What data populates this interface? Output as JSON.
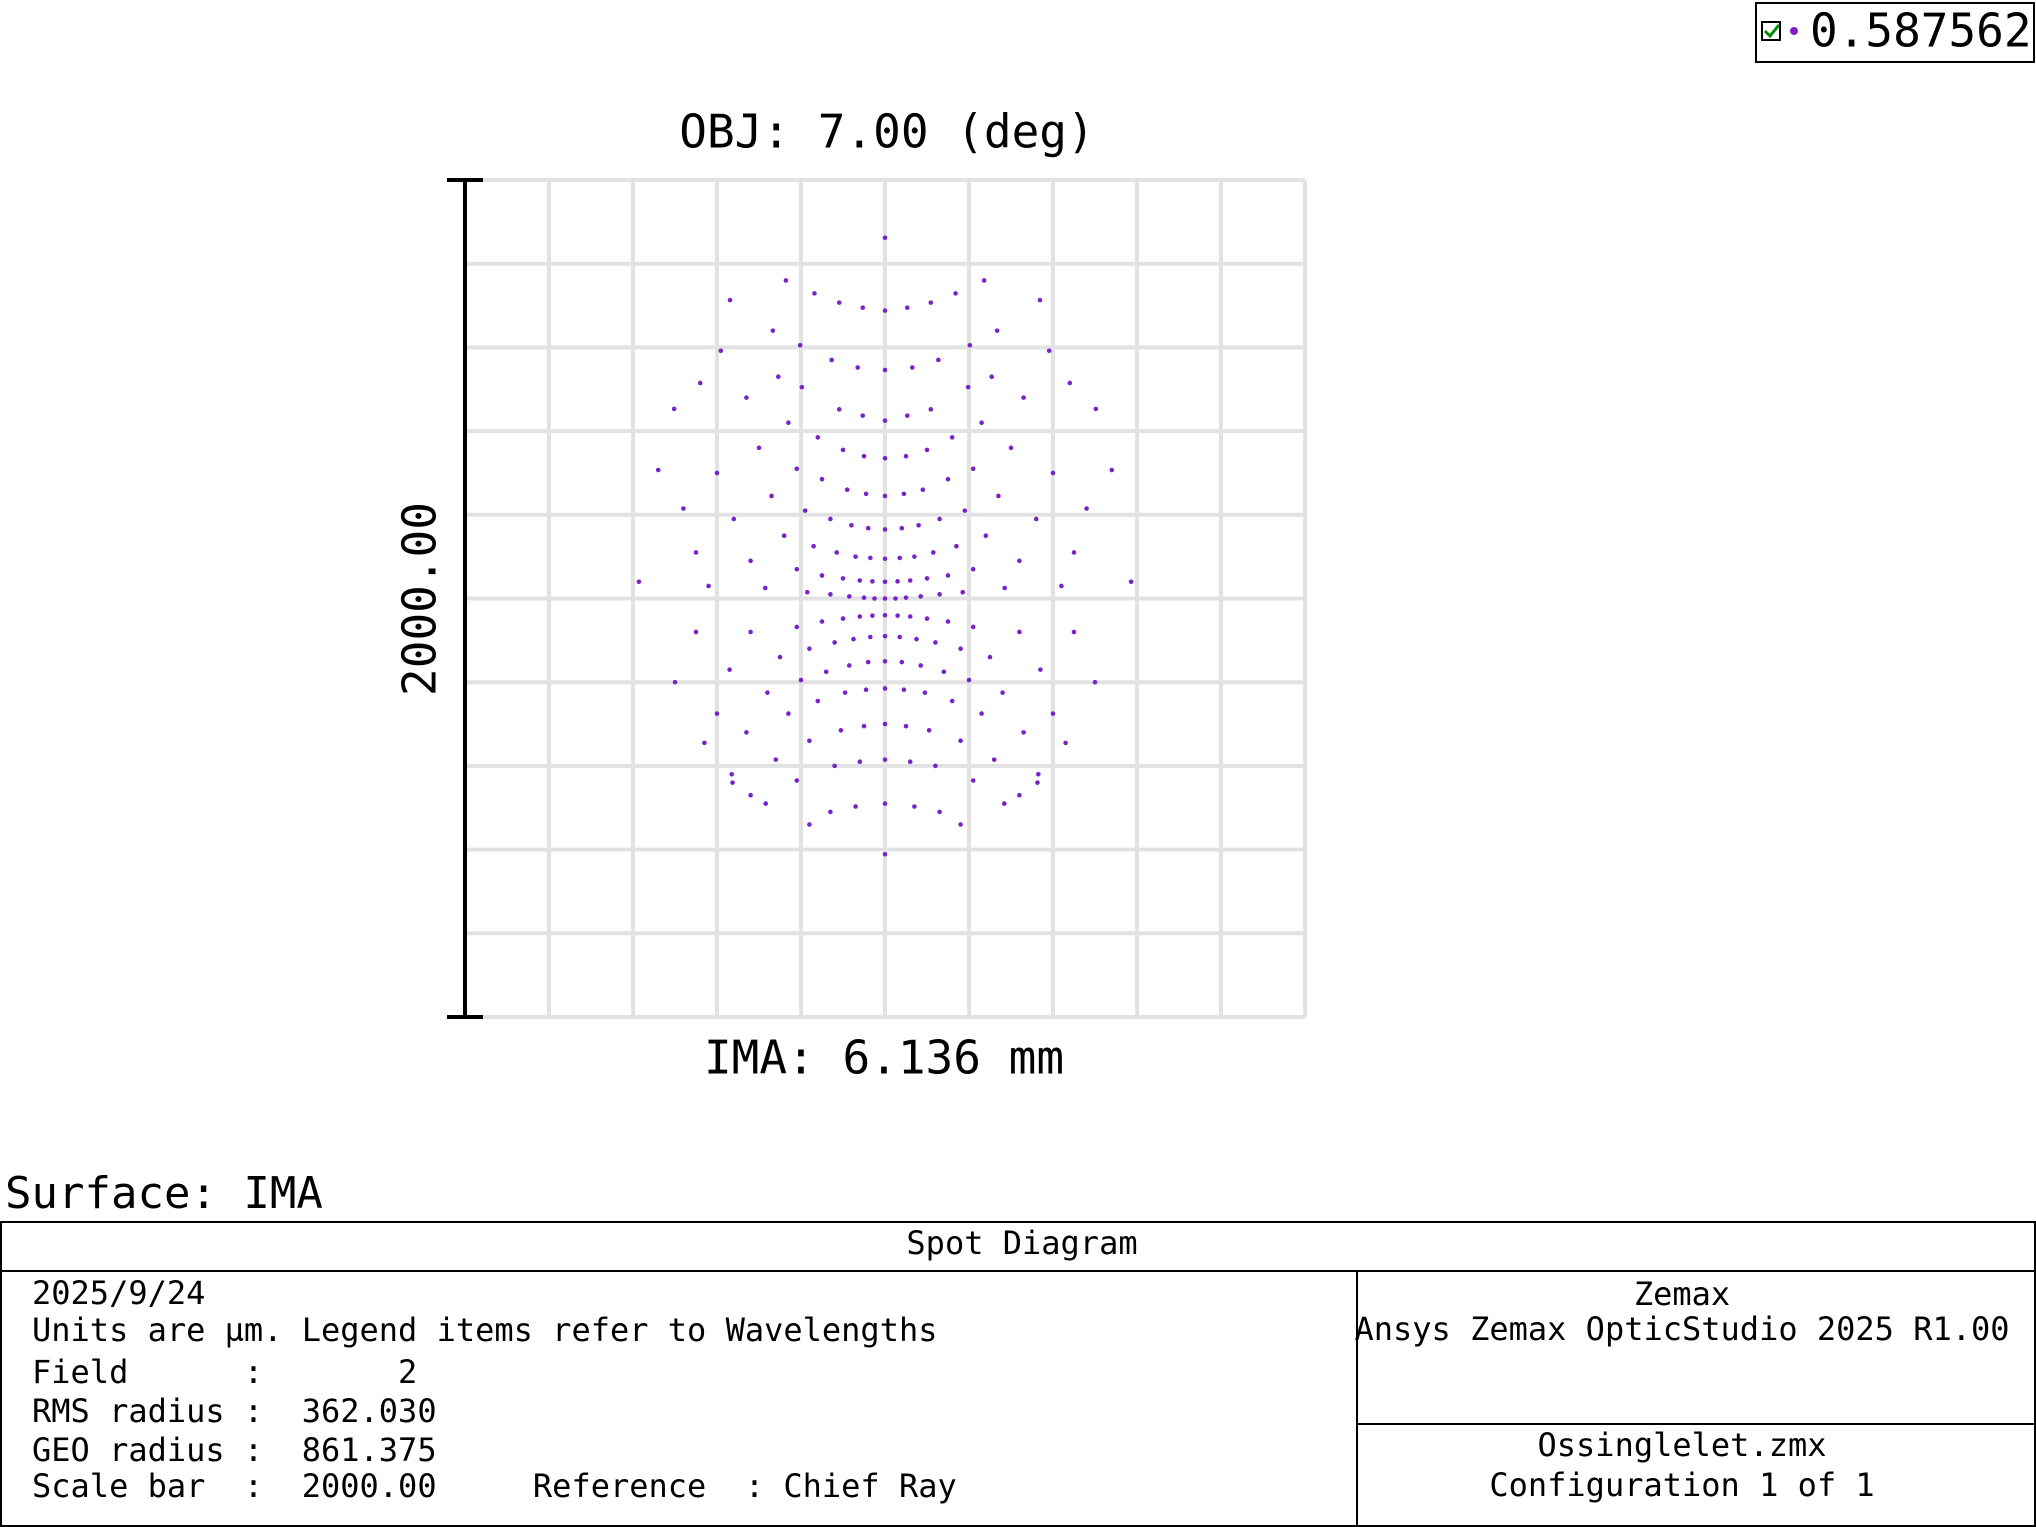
{
  "chart_data": {
    "type": "scatter",
    "title": "OBJ: 7.00 (deg)",
    "xlabel": "IMA: 6.136 mm",
    "ylabel": "2000.00",
    "xlim": [
      -1000,
      1000
    ],
    "ylim": [
      -1000,
      1000
    ],
    "xticks": [
      -1000,
      -800,
      -600,
      -400,
      -200,
      0,
      200,
      400,
      600,
      800,
      1000
    ],
    "yticks": [
      -1000,
      -800,
      -600,
      -400,
      -200,
      0,
      200,
      400,
      600,
      800,
      1000
    ],
    "grid": true,
    "series": [
      {
        "name": "0.587562",
        "color": "#7a22c8",
        "x": [
          0,
          0,
          53,
          -53,
          109,
          -109,
          168,
          -168,
          236,
          -236,
          0,
          65,
          -65,
          127,
          -127,
          202,
          -202,
          267,
          -267,
          369,
          -369,
          0,
          53,
          -53,
          109,
          -109,
          198,
          -198,
          254,
          -254,
          391,
          -391,
          0,
          50,
          -50,
          100,
          -100,
          160,
          -160,
          230,
          -230,
          330,
          -330,
          440,
          -440,
          0,
          45,
          -45,
          90,
          -90,
          150,
          -150,
          210,
          -210,
          300,
          -300,
          502,
          -502,
          0,
          40,
          -40,
          80,
          -80,
          130,
          -130,
          190,
          -190,
          270,
          -270,
          400,
          -400,
          540,
          -540,
          0,
          35,
          -35,
          70,
          -70,
          115,
          -115,
          170,
          -170,
          240,
          -240,
          360,
          -360,
          480,
          -480,
          0,
          30,
          -30,
          60,
          -60,
          100,
          -100,
          150,
          -150,
          210,
          -210,
          320,
          -320,
          450,
          -450,
          586,
          -586,
          0,
          25,
          -25,
          50,
          -50,
          85,
          -85,
          130,
          -130,
          185,
          -185,
          285,
          -285,
          420,
          -420,
          0,
          30,
          -30,
          60,
          -60,
          100,
          -100,
          150,
          -150,
          210,
          -210,
          320,
          -320,
          450,
          -450,
          0,
          35,
          -35,
          75,
          -75,
          120,
          -120,
          180,
          -180,
          250,
          -250,
          370,
          -370,
          500,
          -500,
          0,
          40,
          -40,
          85,
          -85,
          140,
          -140,
          200,
          -200,
          280,
          -280,
          400,
          -400,
          0,
          45,
          -45,
          95,
          -95,
          160,
          -160,
          230,
          -230,
          330,
          -330,
          430,
          -430,
          0,
          50,
          -50,
          105,
          -105,
          180,
          -180,
          260,
          -260,
          365,
          -365,
          0,
          60,
          -60,
          120,
          -120,
          210,
          -210,
          320,
          -320,
          0,
          70,
          -70,
          130,
          -130,
          180,
          -180,
          284,
          -284,
          363,
          -363,
          0
        ],
        "y": [
          862,
          688,
          695,
          695,
          707,
          707,
          729,
          729,
          760,
          760,
          546,
          552,
          552,
          570,
          570,
          605,
          605,
          640,
          640,
          713,
          713,
          425,
          437,
          437,
          452,
          452,
          505,
          505,
          530,
          530,
          592,
          592,
          335,
          340,
          340,
          355,
          355,
          385,
          385,
          420,
          420,
          480,
          480,
          515,
          515,
          245,
          250,
          250,
          260,
          260,
          285,
          285,
          310,
          310,
          360,
          360,
          453,
          453,
          165,
          168,
          168,
          175,
          175,
          190,
          190,
          210,
          210,
          245,
          245,
          300,
          300,
          307,
          307,
          95,
          97,
          97,
          100,
          100,
          110,
          110,
          125,
          125,
          150,
          150,
          190,
          190,
          215,
          215,
          40,
          41,
          41,
          43,
          43,
          48,
          48,
          55,
          55,
          70,
          70,
          90,
          90,
          110,
          110,
          40,
          40,
          0,
          0,
          0,
          2,
          2,
          5,
          5,
          10,
          10,
          15,
          15,
          25,
          25,
          30,
          30,
          -40,
          -41,
          -41,
          -43,
          -43,
          -48,
          -48,
          -55,
          -55,
          -68,
          -68,
          -80,
          -80,
          -80,
          -80,
          -90,
          -92,
          -92,
          -97,
          -97,
          -105,
          -105,
          -120,
          -120,
          -140,
          -140,
          -170,
          -170,
          -200,
          -200,
          -150,
          -152,
          -152,
          -160,
          -160,
          -175,
          -175,
          -195,
          -195,
          -225,
          -225,
          -275,
          -275,
          -215,
          -218,
          -218,
          -225,
          -225,
          -245,
          -245,
          -275,
          -275,
          -320,
          -320,
          -345,
          -345,
          -300,
          -305,
          -305,
          -315,
          -315,
          -340,
          -340,
          -385,
          -385,
          -420,
          -420,
          -385,
          -390,
          -390,
          -400,
          -400,
          -435,
          -435,
          -470,
          -470,
          -490,
          -497,
          -497,
          -510,
          -510,
          -540,
          -540,
          -490,
          -490,
          -440,
          -440,
          -611
        ]
      }
    ]
  },
  "surface_label": "Surface: IMA",
  "footer": {
    "title": "Spot Diagram",
    "lines": [
      "2025/9/24",
      "Units are µm. Legend items refer to Wavelengths",
      "Field      :       2",
      "RMS radius :  362.030",
      "GEO radius :  861.375",
      "Scale bar  :  2000.00     Reference  : Chief Ray"
    ],
    "company": "Zemax",
    "product": "Ansys Zemax OpticStudio 2025 R1.00",
    "file": "Ossinglelet.zmx",
    "configuration": "Configuration 1 of 1"
  }
}
